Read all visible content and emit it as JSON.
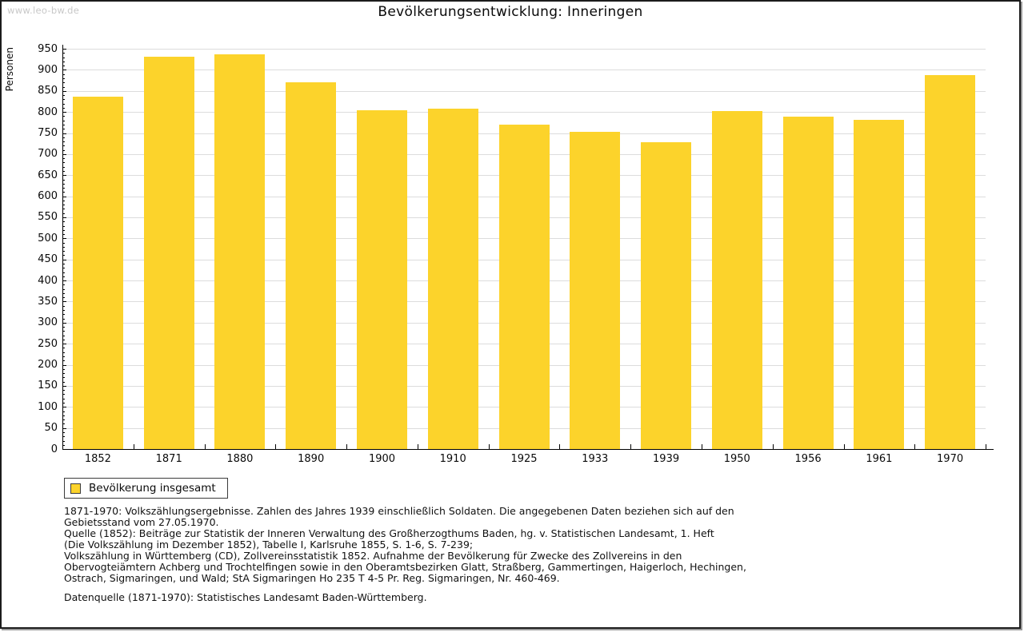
{
  "page": {
    "watermark": "www.leo-bw.de",
    "title": "Bevölkerungsentwicklung: Inneringen"
  },
  "legend": {
    "label": "Bevölkerung insgesamt"
  },
  "chart_data": {
    "type": "bar",
    "title": "Bevölkerungsentwicklung: Inneringen",
    "xlabel": "",
    "ylabel": "Personen",
    "categories": [
      "1852",
      "1871",
      "1880",
      "1890",
      "1900",
      "1910",
      "1925",
      "1933",
      "1939",
      "1950",
      "1956",
      "1961",
      "1970"
    ],
    "series": [
      {
        "name": "Bevölkerung insgesamt",
        "values": [
          837,
          931,
          936,
          870,
          804,
          807,
          770,
          752,
          729,
          802,
          788,
          782,
          888
        ]
      }
    ],
    "ylim": [
      0,
      950
    ],
    "ytick_step": 50,
    "y_minor_tick_step": 10,
    "grid": true,
    "legend_position": "bottom-left",
    "bar_color": "#FCD32B"
  },
  "footer": {
    "lines": [
      "1871-1970: Volkszählungsergebnisse. Zahlen des Jahres 1939 einschließlich Soldaten. Die angegebenen Daten beziehen sich auf den",
      "Gebietsstand vom 27.05.1970.",
      "Quelle (1852): Beiträge zur Statistik der Inneren Verwaltung des Großherzogthums Baden, hg. v. Statistischen Landesamt, 1. Heft",
      "(Die Volkszählung im Dezember 1852), Tabelle I, Karlsruhe 1855, S. 1-6, S. 7-239;",
      "Volkszählung in Württemberg (CD), Zollvereinsstatistik 1852. Aufnahme der Bevölkerung für Zwecke des Zollvereins in den",
      "Obervogteiämtern Achberg und Trochtelfingen sowie in den Oberamtsbezirken Glatt, Straßberg, Gammertingen, Haigerloch, Hechingen,",
      "Ostrach, Sigmaringen, und Wald; StA Sigmaringen Ho 235 T 4-5 Pr. Reg. Sigmaringen, Nr. 460-469."
    ],
    "datasource": "Datenquelle (1871-1970): Statistisches Landesamt Baden-Württemberg."
  },
  "colors": {
    "bar": "#FCD32B",
    "grid": "#DCDCDC",
    "axis": "#000000",
    "text": "#0A0A0A",
    "watermark": "#C8C8C8",
    "frame_border": "#1C1C1C",
    "frame_shadow": "#9A9A9A"
  }
}
